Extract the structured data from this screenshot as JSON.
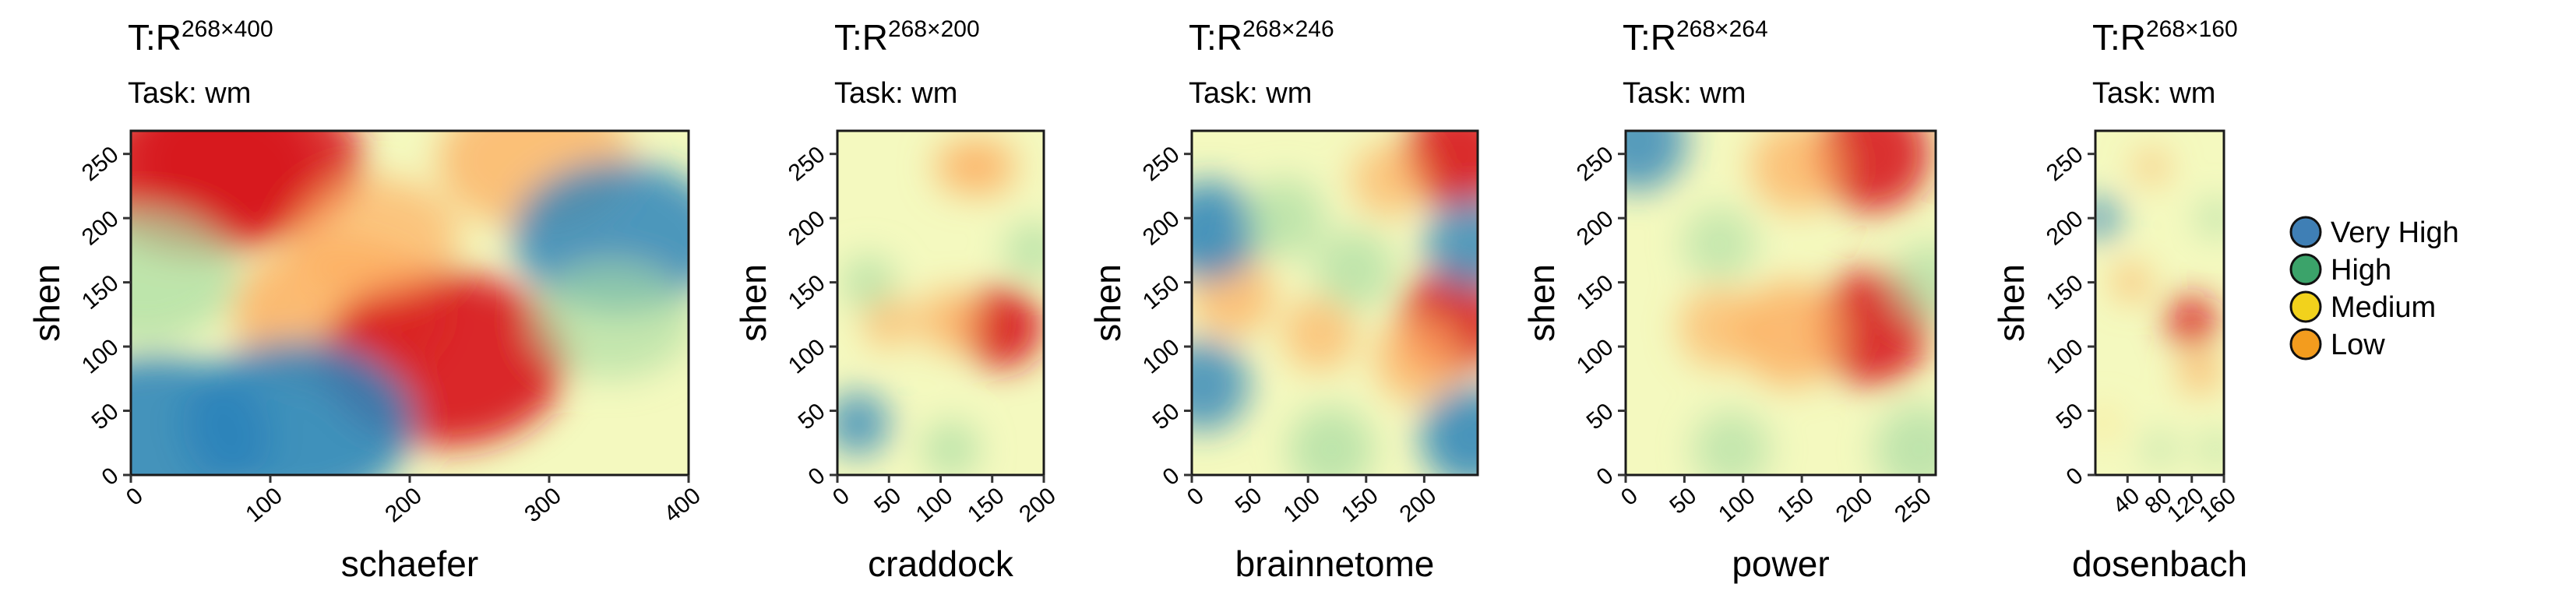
{
  "chart_data": [
    {
      "type": "heatmap",
      "title_prefix": "T:R",
      "title_superscript": "268×400",
      "subtitle": "Task: wm",
      "xlabel": "schaefer",
      "ylabel": "shen",
      "xlim": [
        0,
        400
      ],
      "ylim": [
        0,
        268
      ],
      "xticks": [
        "0",
        "100",
        "200",
        "300",
        "400"
      ],
      "xtick_values": [
        0,
        100,
        200,
        300,
        400
      ],
      "yticks": [
        "0",
        "50",
        "100",
        "150",
        "200",
        "250"
      ],
      "ytick_values": [
        0,
        50,
        100,
        150,
        200,
        250
      ],
      "peaks": [
        {
          "x": 50,
          "y": 235,
          "value": 0.85
        },
        {
          "x": 85,
          "y": 245,
          "value": 0.8
        },
        {
          "x": 150,
          "y": 125,
          "value": 0.7
        },
        {
          "x": 225,
          "y": 90,
          "value": 0.95
        },
        {
          "x": 290,
          "y": 245,
          "value": 0.55
        },
        {
          "x": 175,
          "y": 185,
          "value": 0.35
        },
        {
          "x": 20,
          "y": 30,
          "value": -0.8
        },
        {
          "x": 120,
          "y": 40,
          "value": -0.85
        },
        {
          "x": 350,
          "y": 185,
          "value": -0.7
        },
        {
          "x": 10,
          "y": 155,
          "value": -0.5
        },
        {
          "x": 345,
          "y": 120,
          "value": -0.3
        }
      ]
    },
    {
      "type": "heatmap",
      "title_prefix": "T:R",
      "title_superscript": "268×200",
      "subtitle": "Task: wm",
      "xlabel": "craddock",
      "ylabel": "shen",
      "xlim": [
        0,
        200
      ],
      "ylim": [
        0,
        268
      ],
      "xticks": [
        "0",
        "50",
        "100",
        "150",
        "200"
      ],
      "xtick_values": [
        0,
        50,
        100,
        150,
        200
      ],
      "yticks": [
        "0",
        "50",
        "100",
        "150",
        "200",
        "250"
      ],
      "ytick_values": [
        0,
        50,
        100,
        150,
        200,
        250
      ],
      "peaks": [
        {
          "x": 160,
          "y": 115,
          "value": 0.95
        },
        {
          "x": 110,
          "y": 120,
          "value": 0.55
        },
        {
          "x": 50,
          "y": 120,
          "value": 0.3
        },
        {
          "x": 145,
          "y": 240,
          "value": 0.45
        },
        {
          "x": 120,
          "y": 240,
          "value": 0.35
        },
        {
          "x": 20,
          "y": 40,
          "value": -0.55
        },
        {
          "x": 30,
          "y": 150,
          "value": -0.35
        },
        {
          "x": 110,
          "y": 20,
          "value": -0.4
        },
        {
          "x": 190,
          "y": 175,
          "value": -0.4
        }
      ]
    },
    {
      "type": "heatmap",
      "title_prefix": "T:R",
      "title_superscript": "268×246",
      "subtitle": "Task: wm",
      "xlabel": "brainnetome",
      "ylabel": "shen",
      "xlim": [
        0,
        246
      ],
      "ylim": [
        0,
        268
      ],
      "xticks": [
        "0",
        "50",
        "100",
        "150",
        "200"
      ],
      "xtick_values": [
        0,
        50,
        100,
        150,
        200
      ],
      "yticks": [
        "0",
        "50",
        "100",
        "150",
        "200",
        "250"
      ],
      "ytick_values": [
        0,
        50,
        100,
        150,
        200,
        250
      ],
      "peaks": [
        {
          "x": 230,
          "y": 250,
          "value": 0.9
        },
        {
          "x": 225,
          "y": 120,
          "value": 0.85
        },
        {
          "x": 195,
          "y": 90,
          "value": 0.5
        },
        {
          "x": 35,
          "y": 140,
          "value": 0.45
        },
        {
          "x": 110,
          "y": 110,
          "value": 0.3
        },
        {
          "x": 170,
          "y": 230,
          "value": 0.3
        },
        {
          "x": 15,
          "y": 190,
          "value": -0.75
        },
        {
          "x": 10,
          "y": 70,
          "value": -0.6
        },
        {
          "x": 240,
          "y": 30,
          "value": -0.75
        },
        {
          "x": 240,
          "y": 180,
          "value": -0.6
        },
        {
          "x": 120,
          "y": 20,
          "value": -0.5
        },
        {
          "x": 80,
          "y": 200,
          "value": -0.4
        },
        {
          "x": 140,
          "y": 160,
          "value": -0.4
        }
      ]
    },
    {
      "type": "heatmap",
      "title_prefix": "T:R",
      "title_superscript": "268×264",
      "subtitle": "Task: wm",
      "xlabel": "power",
      "ylabel": "shen",
      "xlim": [
        0,
        264
      ],
      "ylim": [
        0,
        268
      ],
      "xticks": [
        "0",
        "50",
        "100",
        "150",
        "200",
        "250"
      ],
      "xtick_values": [
        0,
        50,
        100,
        150,
        200,
        250
      ],
      "yticks": [
        "0",
        "50",
        "100",
        "150",
        "200",
        "250"
      ],
      "ytick_values": [
        0,
        50,
        100,
        150,
        200,
        250
      ],
      "peaks": [
        {
          "x": 210,
          "y": 250,
          "value": 0.85
        },
        {
          "x": 145,
          "y": 240,
          "value": 0.45
        },
        {
          "x": 210,
          "y": 115,
          "value": 0.85
        },
        {
          "x": 140,
          "y": 110,
          "value": 0.7
        },
        {
          "x": 80,
          "y": 115,
          "value": 0.3
        },
        {
          "x": 10,
          "y": 260,
          "value": -0.6
        },
        {
          "x": 250,
          "y": 20,
          "value": -0.45
        },
        {
          "x": 90,
          "y": 20,
          "value": -0.25
        },
        {
          "x": 80,
          "y": 180,
          "value": -0.2
        },
        {
          "x": 260,
          "y": 150,
          "value": -0.3
        }
      ]
    },
    {
      "type": "heatmap",
      "title_prefix": "T:R",
      "title_superscript": "268×160",
      "subtitle": "Task: wm",
      "xlabel": "dosenbach",
      "ylabel": "shen",
      "xlim": [
        0,
        160
      ],
      "ylim": [
        0,
        268
      ],
      "xticks": [
        "40",
        "80",
        "120",
        "160"
      ],
      "xtick_values": [
        40,
        80,
        120,
        160
      ],
      "yticks": [
        "0",
        "50",
        "100",
        "150",
        "200",
        "250"
      ],
      "ytick_values": [
        0,
        50,
        100,
        150,
        200,
        250
      ],
      "peaks": [
        {
          "x": 120,
          "y": 120,
          "value": 0.9
        },
        {
          "x": 130,
          "y": 80,
          "value": 0.6
        },
        {
          "x": 45,
          "y": 150,
          "value": 0.45
        },
        {
          "x": 70,
          "y": 240,
          "value": 0.3
        },
        {
          "x": 10,
          "y": 40,
          "value": 0.25
        },
        {
          "x": 5,
          "y": 200,
          "value": -0.6
        },
        {
          "x": 150,
          "y": 200,
          "value": -0.45
        },
        {
          "x": 150,
          "y": 20,
          "value": -0.35
        },
        {
          "x": 80,
          "y": 20,
          "value": -0.3
        }
      ]
    }
  ],
  "legend": {
    "items": [
      {
        "label": "Very High",
        "color": "#3f7fb5"
      },
      {
        "label": "High",
        "color": "#3ba36a"
      },
      {
        "label": "Medium",
        "color": "#f2d21c"
      },
      {
        "label": "Low",
        "color": "#f39c1e"
      }
    ]
  },
  "colorscale": [
    "#2b83ba",
    "#abdda4",
    "#ffffbf",
    "#fdae61",
    "#d7191c"
  ]
}
